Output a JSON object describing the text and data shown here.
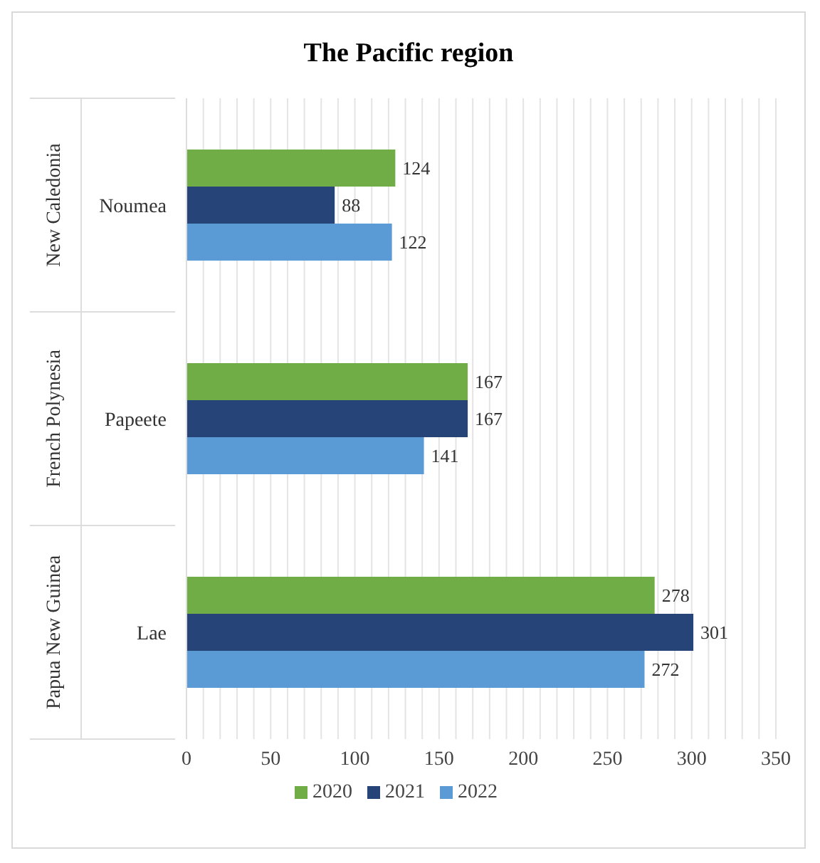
{
  "chart_data": {
    "type": "bar",
    "orientation": "horizontal",
    "title": "The Pacific region",
    "categories": [
      "Noumea",
      "Papeete",
      "Lae"
    ],
    "annotations": [
      "New Caledonia",
      "French Polynesia",
      "Papua New Guinea"
    ],
    "series": [
      {
        "name": "2020",
        "color": "#70ad47",
        "values": [
          124,
          167,
          278
        ]
      },
      {
        "name": "2021",
        "color": "#264478",
        "values": [
          88,
          167,
          301
        ]
      },
      {
        "name": "2022",
        "color": "#5b9bd5",
        "values": [
          122,
          141,
          272
        ]
      }
    ],
    "xlim": [
      0,
      350
    ],
    "xticks": [
      0,
      {
        "value": 10,
        "label": null
      },
      {
        "value": 20,
        "label": null
      },
      {
        "value": 30,
        "label": null
      },
      {
        "value": 40,
        "label": null
      },
      50,
      {
        "value": 60,
        "label": null
      },
      {
        "value": 70,
        "label": null
      },
      {
        "value": 80,
        "label": null
      },
      {
        "value": 90,
        "label": null
      },
      100,
      {
        "value": 110,
        "label": null
      },
      {
        "value": 120,
        "label": null
      },
      {
        "value": 130,
        "label": null
      },
      {
        "value": 140,
        "label": null
      },
      150,
      {
        "value": 160,
        "label": null
      },
      {
        "value": 170,
        "label": null
      },
      {
        "value": 180,
        "label": null
      },
      {
        "value": 190,
        "label": null
      },
      200,
      {
        "value": 210,
        "label": null
      },
      {
        "value": 220,
        "label": null
      },
      {
        "value": 230,
        "label": null
      },
      {
        "value": 240,
        "label": null
      },
      250,
      {
        "value": 260,
        "label": null
      },
      {
        "value": 270,
        "label": null
      },
      {
        "value": 280,
        "label": null
      },
      {
        "value": 290,
        "label": null
      },
      300,
      {
        "value": 310,
        "label": null
      },
      {
        "value": 320,
        "label": null
      },
      {
        "value": 330,
        "label": null
      },
      {
        "value": 340,
        "label": null
      },
      350
    ],
    "grid": "x",
    "legend": "bottom",
    "data_labels": true
  }
}
